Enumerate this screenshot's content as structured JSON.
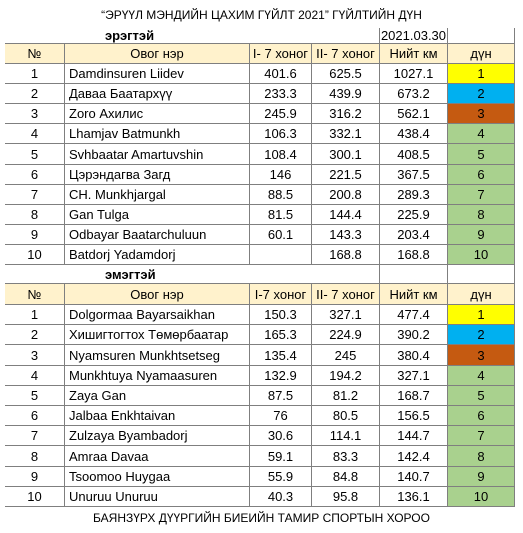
{
  "title": "“ЭРҮҮЛ МЭНДИЙН ЦАХИМ ГҮЙЛТ 2021” ГҮЙЛТИЙН ДҮН",
  "sections": [
    {
      "label": "эрэгтэй",
      "date": "2021.03.30",
      "header": [
        "№",
        "Овог нэр",
        "I- 7 хоног",
        "II- 7 хоног",
        "Нийт км",
        "дүн"
      ],
      "rows": [
        [
          1,
          "Damdinsuren Liidev",
          401.6,
          625.5,
          1027.1,
          1
        ],
        [
          2,
          "Даваа Баатархүү",
          233.3,
          439.9,
          673.2,
          2
        ],
        [
          3,
          "Zoro Ахилис",
          245.9,
          316.2,
          562.1,
          3
        ],
        [
          4,
          "Lhamjav Batmunkh",
          106.3,
          332.1,
          438.4,
          4
        ],
        [
          5,
          "Svhbaatar Amartuvshin",
          108.4,
          300.1,
          408.5,
          5
        ],
        [
          6,
          "Цэрэндагва Загд",
          146,
          221.5,
          367.5,
          6
        ],
        [
          7,
          "CH. Munkhjargal",
          88.5,
          200.8,
          289.3,
          7
        ],
        [
          8,
          "Gan Tulga",
          81.5,
          144.4,
          225.9,
          8
        ],
        [
          9,
          "Odbayar Baatarchuluun",
          60.1,
          143.3,
          203.4,
          9
        ],
        [
          10,
          "Batdorj Yadamdorj",
          null,
          168.8,
          168.8,
          10
        ]
      ]
    },
    {
      "label": "эмэгтэй",
      "header": [
        "№",
        "Овог нэр",
        "I-7 хоног",
        "II- 7 хоног",
        "Нийт км",
        "дүн"
      ],
      "rows": [
        [
          1,
          "Dolgormaa Bayarsaikhan",
          150.3,
          327.1,
          477.4,
          1
        ],
        [
          2,
          "Хишигтогтох Төмөрбаатар",
          165.3,
          224.9,
          390.2,
          2
        ],
        [
          3,
          "Nyamsuren Munkhtsetseg",
          135.4,
          245,
          380.4,
          3
        ],
        [
          4,
          "Munkhtuya Nyamaasuren",
          132.9,
          194.2,
          327.1,
          4
        ],
        [
          5,
          "Zaya Gan",
          87.5,
          81.2,
          168.7,
          5
        ],
        [
          6,
          "Jalbaa Enkhtaivan",
          76,
          80.5,
          156.5,
          6
        ],
        [
          7,
          "Zulzaya Byambadorj",
          30.6,
          114.1,
          144.7,
          7
        ],
        [
          8,
          "Amraa Davaa",
          59.1,
          83.3,
          142.4,
          8
        ],
        [
          9,
          "Tsoomoo Huygaa",
          55.9,
          84.8,
          140.7,
          9
        ],
        [
          10,
          "Unuruu Unuruu",
          40.3,
          95.8,
          136.1,
          10
        ]
      ]
    }
  ],
  "footer": "БАЯНЗҮРХ ДҮҮРГИЙН БИЕИЙН ТАМИР СПОРТЫН ХОРОО"
}
